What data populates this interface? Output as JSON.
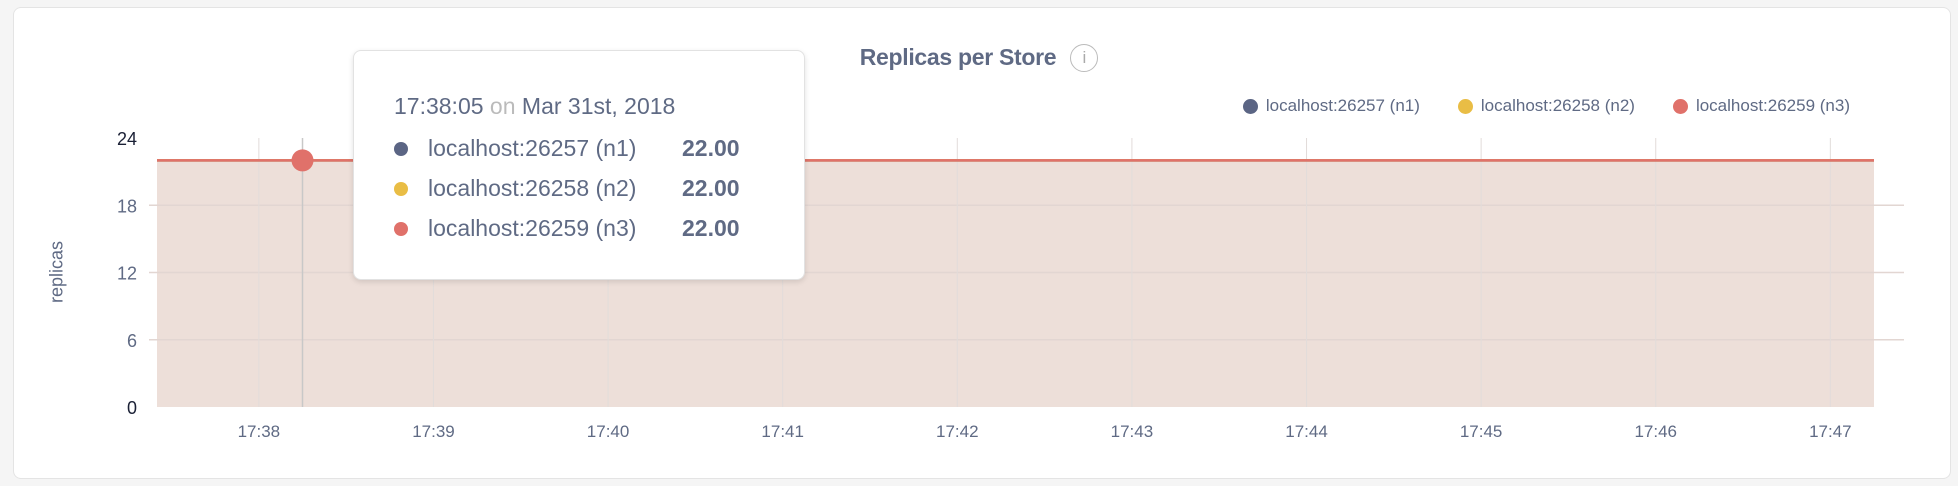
{
  "chart_data": {
    "type": "area",
    "title": "Replicas per Store",
    "ylabel": "replicas",
    "xlabel": "",
    "ylim": [
      0,
      24
    ],
    "yticks": [
      "0",
      "6",
      "12",
      "18",
      "24"
    ],
    "xticks": [
      "17:38",
      "17:39",
      "17:40",
      "17:41",
      "17:42",
      "17:43",
      "17:44",
      "17:45",
      "17:46",
      "17:47"
    ],
    "xrange": [
      "17:37:25",
      "17:47:15"
    ],
    "grid": true,
    "legend_position": "top-right",
    "series": [
      {
        "name": "localhost:26257 (n1)",
        "color": "#5b6584",
        "x": [
          "17:37:25",
          "17:47:15"
        ],
        "y": [
          22,
          22
        ]
      },
      {
        "name": "localhost:26258 (n2)",
        "color": "#e9bd45",
        "x": [
          "17:37:25",
          "17:47:15"
        ],
        "y": [
          22,
          22
        ]
      },
      {
        "name": "localhost:26259 (n3)",
        "color": "#e0716a",
        "x": [
          "17:37:25",
          "17:47:15"
        ],
        "y": [
          22,
          22
        ]
      }
    ],
    "fill_color": "#eddfd9"
  },
  "tooltip": {
    "time": "17:38:05",
    "on": "on",
    "date": "Mar 31st, 2018",
    "hover_x": "17:38:15",
    "rows": [
      {
        "name": "localhost:26257 (n1)",
        "value": "22.00",
        "color": "#5b6584"
      },
      {
        "name": "localhost:26258 (n2)",
        "value": "22.00",
        "color": "#e9bd45"
      },
      {
        "name": "localhost:26259 (n3)",
        "value": "22.00",
        "color": "#e0716a"
      }
    ]
  },
  "info_icon": "info-circle-icon"
}
